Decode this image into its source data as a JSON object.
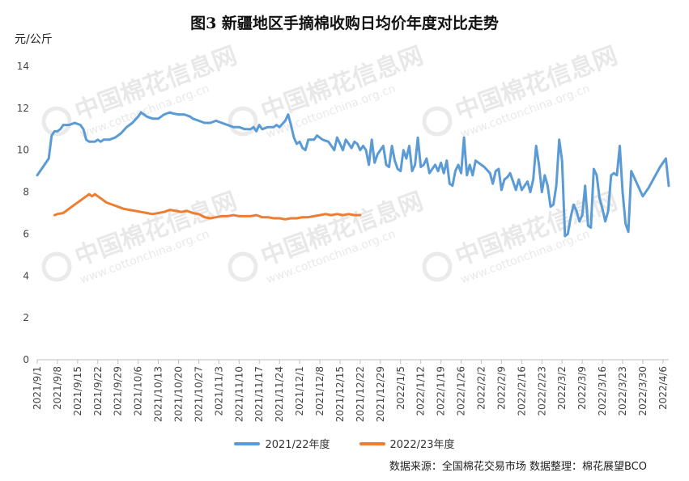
{
  "chart_data": {
    "type": "line",
    "title": "图3  新疆地区手摘棉收购日均价年度对比走势",
    "ylabel": "元/公斤",
    "ylim": [
      0,
      14
    ],
    "yticks": [
      0,
      2,
      4,
      6,
      8,
      10,
      12,
      14
    ],
    "xticks": [
      "2021/9/1",
      "2021/9/8",
      "2021/9/15",
      "2021/9/22",
      "2021/9/29",
      "2021/10/6",
      "2021/10/13",
      "2021/10/20",
      "2021/10/27",
      "2021/11/3",
      "2021/11/10",
      "2021/11/17",
      "2021/11/24",
      "2021/12/1",
      "2021/12/8",
      "2021/12/15",
      "2021/12/22",
      "2021/12/29",
      "2022/1/5",
      "2022/1/12",
      "2022/1/19",
      "2022/1/26",
      "2022/2/2",
      "2022/2/9",
      "2022/2/16",
      "2022/2/23",
      "2022/3/2",
      "2022/3/9",
      "2022/3/16",
      "2022/3/23",
      "2022/3/30",
      "2022/4/6"
    ],
    "x_range": [
      "2021/9/1",
      "2022/4/8"
    ],
    "grid": false,
    "legend_position": "bottom",
    "source": "数据来源：全国棉花交易市场    数据整理：棉花展望BCO",
    "watermark": "中国棉花信息网 www.cottonchina.org.cn",
    "series": [
      {
        "name": "2021/22年度",
        "color": "#5b9bd5",
        "points": [
          [
            "2021/9/1",
            8.8
          ],
          [
            "2021/9/3",
            9.2
          ],
          [
            "2021/9/5",
            9.6
          ],
          [
            "2021/9/6",
            10.7
          ],
          [
            "2021/9/7",
            10.9
          ],
          [
            "2021/9/8",
            10.9
          ],
          [
            "2021/9/9",
            11.0
          ],
          [
            "2021/9/10",
            11.2
          ],
          [
            "2021/9/12",
            11.2
          ],
          [
            "2021/9/14",
            11.3
          ],
          [
            "2021/9/16",
            11.2
          ],
          [
            "2021/9/17",
            11.0
          ],
          [
            "2021/9/18",
            10.5
          ],
          [
            "2021/9/19",
            10.4
          ],
          [
            "2021/9/21",
            10.4
          ],
          [
            "2021/9/22",
            10.5
          ],
          [
            "2021/9/23",
            10.4
          ],
          [
            "2021/9/24",
            10.5
          ],
          [
            "2021/9/26",
            10.5
          ],
          [
            "2021/9/28",
            10.6
          ],
          [
            "2021/9/30",
            10.8
          ],
          [
            "2021/10/2",
            11.1
          ],
          [
            "2021/10/4",
            11.3
          ],
          [
            "2021/10/6",
            11.6
          ],
          [
            "2021/10/7",
            11.8
          ],
          [
            "2021/10/8",
            11.7
          ],
          [
            "2021/10/9",
            11.6
          ],
          [
            "2021/10/11",
            11.5
          ],
          [
            "2021/10/13",
            11.5
          ],
          [
            "2021/10/15",
            11.7
          ],
          [
            "2021/10/17",
            11.8
          ],
          [
            "2021/10/18",
            11.75
          ],
          [
            "2021/10/20",
            11.7
          ],
          [
            "2021/10/22",
            11.7
          ],
          [
            "2021/10/24",
            11.6
          ],
          [
            "2021/10/25",
            11.5
          ],
          [
            "2021/10/27",
            11.4
          ],
          [
            "2021/10/29",
            11.3
          ],
          [
            "2021/10/31",
            11.3
          ],
          [
            "2021/11/2",
            11.4
          ],
          [
            "2021/11/4",
            11.3
          ],
          [
            "2021/11/6",
            11.2
          ],
          [
            "2021/11/8",
            11.1
          ],
          [
            "2021/11/10",
            11.1
          ],
          [
            "2021/11/12",
            11.0
          ],
          [
            "2021/11/14",
            11.0
          ],
          [
            "2021/11/15",
            11.1
          ],
          [
            "2021/11/16",
            10.9
          ],
          [
            "2021/11/17",
            11.2
          ],
          [
            "2021/11/18",
            11.0
          ],
          [
            "2021/11/20",
            11.1
          ],
          [
            "2021/11/22",
            11.1
          ],
          [
            "2021/11/23",
            11.2
          ],
          [
            "2021/11/24",
            11.1
          ],
          [
            "2021/11/26",
            11.4
          ],
          [
            "2021/11/27",
            11.7
          ],
          [
            "2021/11/28",
            11.2
          ],
          [
            "2021/11/29",
            10.6
          ],
          [
            "2021/11/30",
            10.3
          ],
          [
            "2021/12/1",
            10.4
          ],
          [
            "2021/12/2",
            10.1
          ],
          [
            "2021/12/3",
            10.0
          ],
          [
            "2021/12/4",
            10.5
          ],
          [
            "2021/12/6",
            10.5
          ],
          [
            "2021/12/7",
            10.7
          ],
          [
            "2021/12/8",
            10.6
          ],
          [
            "2021/12/9",
            10.5
          ],
          [
            "2021/12/11",
            10.4
          ],
          [
            "2021/12/12",
            10.2
          ],
          [
            "2021/12/13",
            10.0
          ],
          [
            "2021/12/14",
            10.6
          ],
          [
            "2021/12/15",
            10.3
          ],
          [
            "2021/12/16",
            10.0
          ],
          [
            "2021/12/17",
            10.5
          ],
          [
            "2021/12/18",
            10.3
          ],
          [
            "2021/12/19",
            10.1
          ],
          [
            "2021/12/20",
            10.4
          ],
          [
            "2021/12/21",
            10.3
          ],
          [
            "2021/12/22",
            10.0
          ],
          [
            "2021/12/23",
            10.2
          ],
          [
            "2021/12/24",
            10.0
          ],
          [
            "2021/12/25",
            9.3
          ],
          [
            "2021/12/26",
            10.5
          ],
          [
            "2021/12/27",
            9.4
          ],
          [
            "2021/12/28",
            9.8
          ],
          [
            "2021/12/30",
            10.2
          ],
          [
            "2021/12/31",
            9.3
          ],
          [
            "2022/1/1",
            9.2
          ],
          [
            "2022/1/2",
            10.2
          ],
          [
            "2022/1/3",
            9.5
          ],
          [
            "2022/1/4",
            9.1
          ],
          [
            "2022/1/5",
            9.0
          ],
          [
            "2022/1/6",
            10.0
          ],
          [
            "2022/1/7",
            9.6
          ],
          [
            "2022/1/8",
            10.2
          ],
          [
            "2022/1/9",
            9.0
          ],
          [
            "2022/1/10",
            9.3
          ],
          [
            "2022/1/11",
            10.6
          ],
          [
            "2022/1/12",
            9.2
          ],
          [
            "2022/1/13",
            9.3
          ],
          [
            "2022/1/14",
            9.6
          ],
          [
            "2022/1/15",
            8.9
          ],
          [
            "2022/1/16",
            9.1
          ],
          [
            "2022/1/17",
            9.3
          ],
          [
            "2022/1/18",
            9.0
          ],
          [
            "2022/1/19",
            9.4
          ],
          [
            "2022/1/20",
            8.9
          ],
          [
            "2022/1/21",
            9.5
          ],
          [
            "2022/1/22",
            8.4
          ],
          [
            "2022/1/23",
            8.3
          ],
          [
            "2022/1/24",
            9.0
          ],
          [
            "2022/1/25",
            9.3
          ],
          [
            "2022/1/26",
            8.9
          ],
          [
            "2022/1/27",
            10.6
          ],
          [
            "2022/1/28",
            8.8
          ],
          [
            "2022/1/29",
            9.3
          ],
          [
            "2022/1/30",
            8.8
          ],
          [
            "2022/1/31",
            9.5
          ],
          [
            "2022/2/3",
            9.2
          ],
          [
            "2022/2/5",
            8.9
          ],
          [
            "2022/2/6",
            8.4
          ],
          [
            "2022/2/7",
            9.0
          ],
          [
            "2022/2/8",
            9.1
          ],
          [
            "2022/2/9",
            8.1
          ],
          [
            "2022/2/10",
            8.6
          ],
          [
            "2022/2/11",
            8.7
          ],
          [
            "2022/2/12",
            8.9
          ],
          [
            "2022/2/13",
            8.5
          ],
          [
            "2022/2/14",
            8.1
          ],
          [
            "2022/2/15",
            8.6
          ],
          [
            "2022/2/16",
            8.1
          ],
          [
            "2022/2/17",
            8.3
          ],
          [
            "2022/2/18",
            8.5
          ],
          [
            "2022/2/19",
            8.0
          ],
          [
            "2022/2/20",
            8.6
          ],
          [
            "2022/2/21",
            10.2
          ],
          [
            "2022/2/22",
            9.3
          ],
          [
            "2022/2/23",
            8.0
          ],
          [
            "2022/2/24",
            8.8
          ],
          [
            "2022/2/25",
            8.3
          ],
          [
            "2022/2/26",
            7.3
          ],
          [
            "2022/2/27",
            7.4
          ],
          [
            "2022/2/28",
            8.3
          ],
          [
            "2022/3/1",
            10.5
          ],
          [
            "2022/3/2",
            9.5
          ],
          [
            "2022/3/3",
            5.9
          ],
          [
            "2022/3/4",
            6.0
          ],
          [
            "2022/3/5",
            6.8
          ],
          [
            "2022/3/6",
            7.4
          ],
          [
            "2022/3/7",
            7.1
          ],
          [
            "2022/3/8",
            6.6
          ],
          [
            "2022/3/9",
            6.9
          ],
          [
            "2022/3/10",
            8.3
          ],
          [
            "2022/3/11",
            6.4
          ],
          [
            "2022/3/12",
            6.3
          ],
          [
            "2022/3/13",
            9.1
          ],
          [
            "2022/3/14",
            8.8
          ],
          [
            "2022/3/15",
            7.7
          ],
          [
            "2022/3/16",
            7.2
          ],
          [
            "2022/3/17",
            6.6
          ],
          [
            "2022/3/18",
            7.1
          ],
          [
            "2022/3/19",
            8.8
          ],
          [
            "2022/3/20",
            8.9
          ],
          [
            "2022/3/21",
            8.8
          ],
          [
            "2022/3/22",
            10.2
          ],
          [
            "2022/3/23",
            8.0
          ],
          [
            "2022/3/24",
            6.5
          ],
          [
            "2022/3/25",
            6.1
          ],
          [
            "2022/3/26",
            9.0
          ],
          [
            "2022/3/28",
            8.4
          ],
          [
            "2022/3/30",
            7.8
          ],
          [
            "2022/4/1",
            8.2
          ],
          [
            "2022/4/3",
            8.7
          ],
          [
            "2022/4/5",
            9.2
          ],
          [
            "2022/4/7",
            9.6
          ],
          [
            "2022/4/8",
            8.3
          ]
        ]
      },
      {
        "name": "2022/23年度",
        "color": "#ed7d31",
        "points": [
          [
            "2021/9/7",
            6.9
          ],
          [
            "2021/9/8",
            6.95
          ],
          [
            "2021/9/10",
            7.0
          ],
          [
            "2021/9/12",
            7.2
          ],
          [
            "2021/9/14",
            7.4
          ],
          [
            "2021/9/16",
            7.6
          ],
          [
            "2021/9/18",
            7.8
          ],
          [
            "2021/9/19",
            7.9
          ],
          [
            "2021/9/20",
            7.8
          ],
          [
            "2021/9/21",
            7.9
          ],
          [
            "2021/9/23",
            7.7
          ],
          [
            "2021/9/25",
            7.5
          ],
          [
            "2021/9/27",
            7.4
          ],
          [
            "2021/9/29",
            7.3
          ],
          [
            "2021/10/1",
            7.2
          ],
          [
            "2021/10/3",
            7.15
          ],
          [
            "2021/10/5",
            7.1
          ],
          [
            "2021/10/7",
            7.05
          ],
          [
            "2021/10/9",
            7.0
          ],
          [
            "2021/10/11",
            6.95
          ],
          [
            "2021/10/13",
            7.0
          ],
          [
            "2021/10/15",
            7.05
          ],
          [
            "2021/10/17",
            7.15
          ],
          [
            "2021/10/19",
            7.1
          ],
          [
            "2021/10/21",
            7.05
          ],
          [
            "2021/10/23",
            7.1
          ],
          [
            "2021/10/25",
            7.0
          ],
          [
            "2021/10/27",
            6.95
          ],
          [
            "2021/10/29",
            6.8
          ],
          [
            "2021/10/31",
            6.75
          ],
          [
            "2021/11/2",
            6.8
          ],
          [
            "2021/11/4",
            6.85
          ],
          [
            "2021/11/6",
            6.85
          ],
          [
            "2021/11/8",
            6.9
          ],
          [
            "2021/11/10",
            6.85
          ],
          [
            "2021/11/12",
            6.85
          ],
          [
            "2021/11/14",
            6.85
          ],
          [
            "2021/11/16",
            6.9
          ],
          [
            "2021/11/18",
            6.8
          ],
          [
            "2021/11/20",
            6.8
          ],
          [
            "2021/11/22",
            6.75
          ],
          [
            "2021/11/24",
            6.75
          ],
          [
            "2021/11/26",
            6.7
          ],
          [
            "2021/11/28",
            6.75
          ],
          [
            "2021/11/30",
            6.75
          ],
          [
            "2021/12/2",
            6.8
          ],
          [
            "2021/12/4",
            6.8
          ],
          [
            "2021/12/6",
            6.85
          ],
          [
            "2021/12/8",
            6.9
          ],
          [
            "2021/12/10",
            6.95
          ],
          [
            "2021/12/12",
            6.9
          ],
          [
            "2021/12/14",
            6.95
          ],
          [
            "2021/12/16",
            6.9
          ],
          [
            "2021/12/18",
            6.95
          ],
          [
            "2021/12/20",
            6.9
          ],
          [
            "2021/12/22",
            6.9
          ]
        ]
      }
    ]
  }
}
